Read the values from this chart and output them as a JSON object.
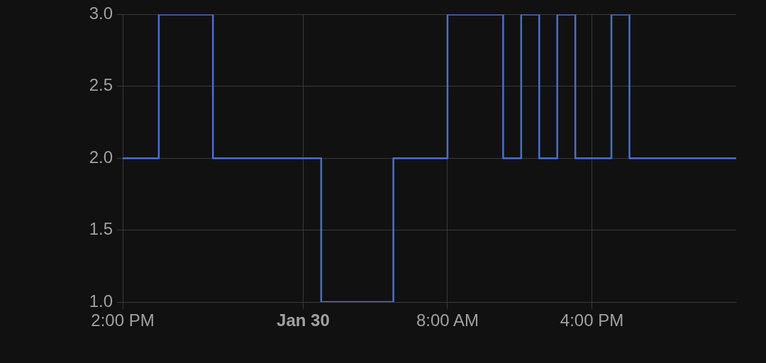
{
  "chart_data": {
    "type": "step",
    "x": [
      "--01-29T14:00",
      "--01-29T16:00",
      "--01-29T19:00",
      "--01-30T01:00",
      "--01-30T05:00",
      "--01-30T08:00",
      "--01-30T11:05",
      "--01-30T12:05",
      "--01-30T13:05",
      "--01-30T14:05",
      "--01-30T15:05",
      "--01-30T17:05",
      "--01-30T18:05",
      "--01-31T00:00"
    ],
    "series": [
      {
        "color": "#4a6fd0",
        "values": [
          2,
          3,
          2,
          1,
          2,
          3,
          2,
          3,
          2,
          3,
          2,
          3,
          2,
          2
        ]
      }
    ],
    "xlim": [
      "--01-29T14:00",
      "--01-31T00:00"
    ],
    "xticks": [
      {
        "value": "--01-29T14:00",
        "label": "2:00 PM"
      },
      {
        "value": "--01-30T00:00",
        "label": "Jan 30"
      },
      {
        "value": "--01-30T08:00",
        "label": "8:00 AM"
      },
      {
        "value": "--01-30T16:00",
        "label": "4:00 PM"
      }
    ],
    "ylim": [
      1,
      3
    ],
    "yticks": [
      {
        "value": 1,
        "label": "1.0"
      },
      {
        "value": 1.5,
        "label": "1.5"
      },
      {
        "value": 2,
        "label": "2.0"
      },
      {
        "value": 2.5,
        "label": "2.5"
      },
      {
        "value": 3,
        "label": "3.0"
      }
    ],
    "grid": true,
    "legend": false
  }
}
